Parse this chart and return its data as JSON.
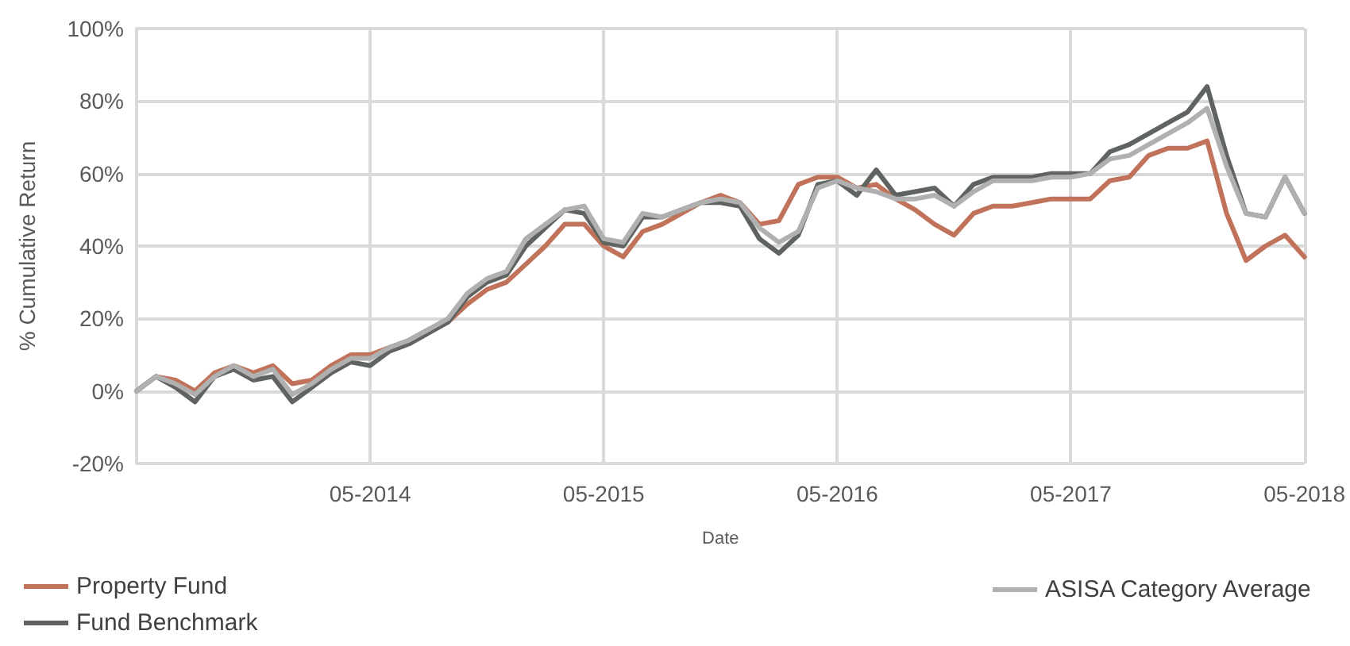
{
  "chart_data": {
    "type": "line",
    "xlabel": "Date",
    "ylabel": "% Cumulative Return",
    "categories": [
      null,
      null,
      null,
      null,
      null,
      null,
      null,
      null,
      null,
      null,
      null,
      null,
      "05-2014",
      null,
      null,
      null,
      null,
      null,
      null,
      null,
      null,
      null,
      null,
      null,
      "05-2015",
      null,
      null,
      null,
      null,
      null,
      null,
      null,
      null,
      null,
      null,
      null,
      "05-2016",
      null,
      null,
      null,
      null,
      null,
      null,
      null,
      null,
      null,
      null,
      null,
      "05-2017",
      null,
      null,
      null,
      null,
      null,
      null,
      null,
      null,
      null,
      null,
      null,
      "05-2018"
    ],
    "ylim": [
      -20,
      100
    ],
    "yticks": [
      {
        "value": -20,
        "label": "-20%"
      },
      {
        "value": 0,
        "label": "0%"
      },
      {
        "value": 20,
        "label": "20%"
      },
      {
        "value": 40,
        "label": "40%"
      },
      {
        "value": 60,
        "label": "60%"
      },
      {
        "value": 80,
        "label": "80%"
      },
      {
        "value": 100,
        "label": "100%"
      }
    ],
    "grid": true,
    "legend": "bottom",
    "marker": "none",
    "line_style": "solid",
    "series": [
      {
        "name": "Property Fund",
        "color": "#c0735a",
        "values": [
          0,
          4,
          3,
          0,
          5,
          7,
          5,
          7,
          2,
          3,
          7,
          10,
          10,
          12,
          14,
          17,
          19,
          24,
          28,
          30,
          35,
          40,
          46,
          46,
          40,
          37,
          44,
          46,
          49,
          52,
          54,
          52,
          46,
          47,
          57,
          59,
          59,
          56,
          57,
          53,
          50,
          46,
          43,
          49,
          51,
          51,
          52,
          53,
          53,
          53,
          58,
          59,
          65,
          67,
          67,
          69,
          49,
          36,
          40,
          43,
          37
        ]
      },
      {
        "name": "Fund Benchmark",
        "color": "#5f6460",
        "values": [
          0,
          4,
          1,
          -3,
          4,
          6,
          3,
          4,
          -3,
          1,
          5,
          8,
          7,
          11,
          13,
          16,
          19,
          26,
          30,
          32,
          40,
          45,
          50,
          49,
          41,
          40,
          48,
          48,
          50,
          52,
          52,
          51,
          42,
          38,
          43,
          57,
          58,
          54,
          61,
          54,
          55,
          56,
          51,
          57,
          59,
          59,
          59,
          60,
          60,
          60,
          66,
          68,
          71,
          74,
          77,
          84,
          65,
          49,
          48,
          59,
          49
        ]
      },
      {
        "name": "ASISA Category Average",
        "color": "#b0b0b0",
        "values": [
          0,
          4,
          2,
          -1,
          4,
          7,
          4,
          6,
          -1,
          2,
          6,
          9,
          9,
          12,
          14,
          17,
          20,
          27,
          31,
          33,
          42,
          46,
          50,
          51,
          42,
          41,
          49,
          48,
          50,
          52,
          53,
          52,
          45,
          41,
          44,
          56,
          58,
          56,
          55,
          53,
          53,
          54,
          51,
          55,
          58,
          58,
          58,
          59,
          59,
          60,
          64,
          65,
          68,
          71,
          74,
          78,
          62,
          49,
          48,
          59,
          49
        ]
      }
    ]
  }
}
